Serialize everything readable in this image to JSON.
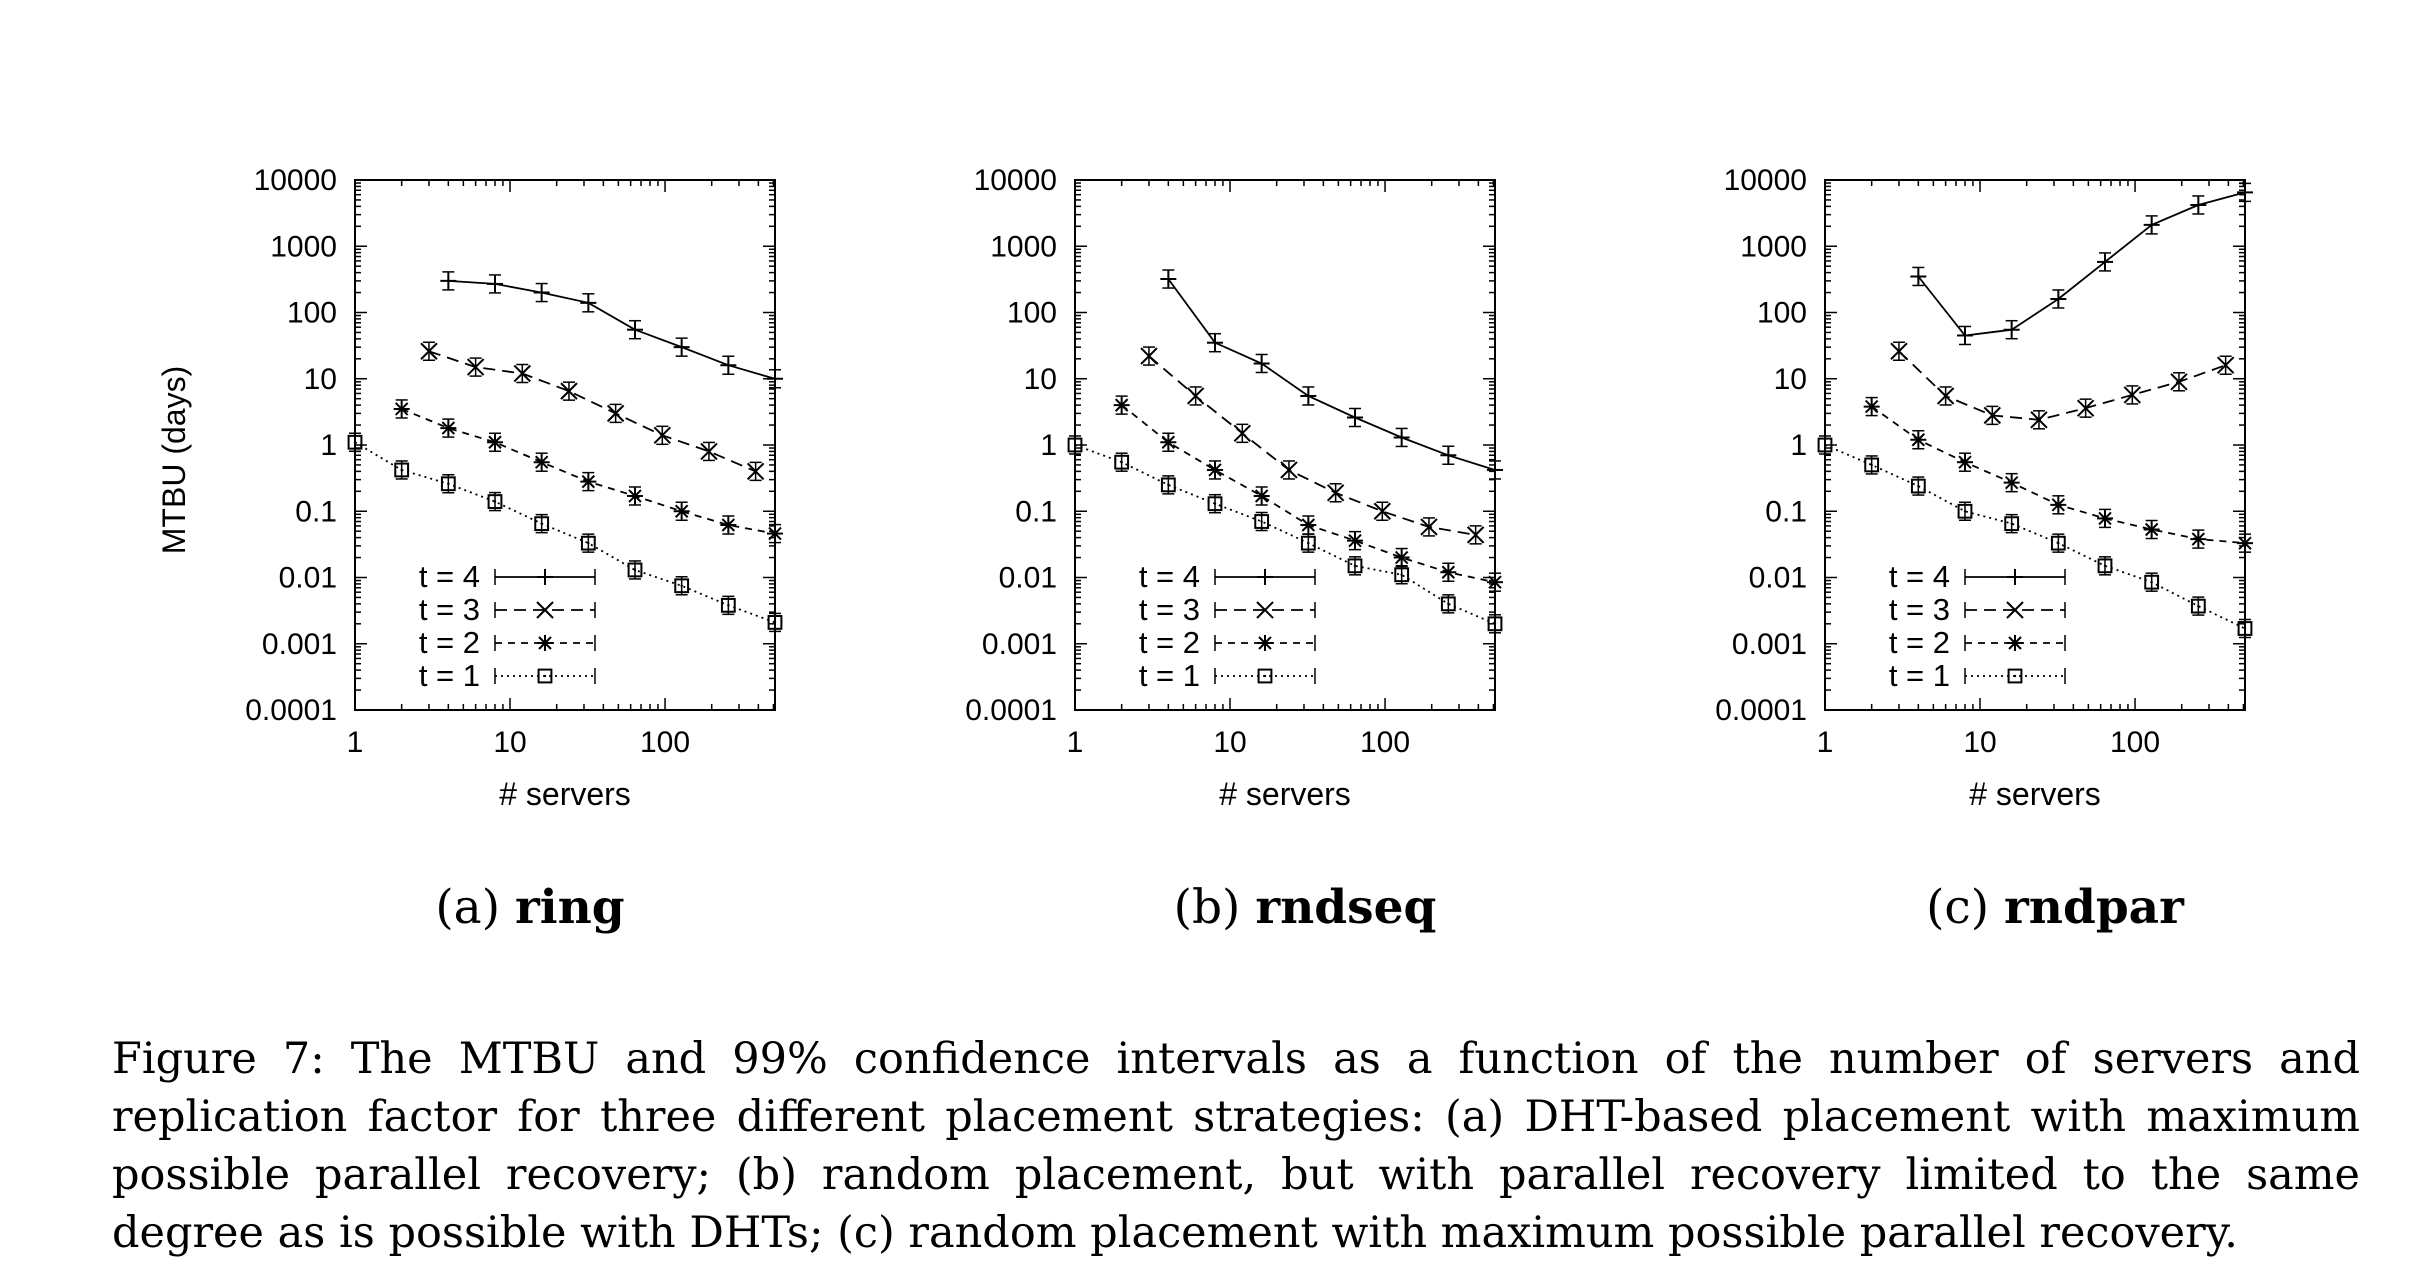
{
  "figure": {
    "caption": "Figure 7: The MTBU and 99% confidence intervals as a function of the number of servers and replication factor for three different placement strategies: (a) DHT-based placement with maximum possible parallel recovery; (b) random placement, but with parallel recovery limited to the same degree as is possible with DHTs; (c) random placement with maximum possible parallel recovery."
  },
  "subcaptions": [
    {
      "prefix": "(a) ",
      "name": "ring"
    },
    {
      "prefix": "(b) ",
      "name": "rndseq"
    },
    {
      "prefix": "(c) ",
      "name": "rndpar"
    }
  ],
  "chart_data": [
    {
      "type": "line",
      "title": "",
      "xlabel": "# servers",
      "ylabel": "MTBU (days)",
      "xscale": "log",
      "yscale": "log",
      "xlim": [
        1,
        512
      ],
      "ylim": [
        0.0001,
        10000
      ],
      "xticks": [
        "1",
        "10",
        "100"
      ],
      "yticks": [
        "0.0001",
        "0.001",
        "0.01",
        "0.1",
        "1",
        "10",
        "100",
        "1000",
        "10000"
      ],
      "legend_position": "bottom-left",
      "series": [
        {
          "name": "t = 4",
          "marker": "plus",
          "dash": "solid",
          "x": [
            4,
            8,
            16,
            32,
            64,
            128,
            256,
            512
          ],
          "y": [
            300,
            270,
            200,
            140,
            55,
            30,
            16,
            10
          ]
        },
        {
          "name": "t = 3",
          "marker": "x",
          "dash": "dashed",
          "x": [
            3,
            6,
            12,
            24,
            48,
            96,
            192,
            384
          ],
          "y": [
            26,
            15,
            12,
            6.5,
            3,
            1.4,
            0.8,
            0.4
          ]
        },
        {
          "name": "t = 2",
          "marker": "star",
          "dash": "shortdash",
          "x": [
            2,
            4,
            8,
            16,
            32,
            64,
            128,
            256,
            512
          ],
          "y": [
            3.5,
            1.8,
            1.1,
            0.55,
            0.28,
            0.17,
            0.1,
            0.062,
            0.046
          ]
        },
        {
          "name": "t = 1",
          "marker": "square",
          "dash": "dotted",
          "x": [
            1,
            2,
            4,
            8,
            16,
            32,
            64,
            128,
            256,
            512
          ],
          "y": [
            1.1,
            0.42,
            0.26,
            0.14,
            0.065,
            0.033,
            0.013,
            0.0075,
            0.0038,
            0.0021
          ]
        }
      ]
    },
    {
      "type": "line",
      "title": "",
      "xlabel": "# servers",
      "ylabel": "",
      "xscale": "log",
      "yscale": "log",
      "xlim": [
        1,
        512
      ],
      "ylim": [
        0.0001,
        10000
      ],
      "xticks": [
        "1",
        "10",
        "100"
      ],
      "yticks": [
        "0.0001",
        "0.001",
        "0.01",
        "0.1",
        "1",
        "10",
        "100",
        "1000",
        "10000"
      ],
      "legend_position": "bottom-left",
      "series": [
        {
          "name": "t = 4",
          "marker": "plus",
          "dash": "solid",
          "x": [
            4,
            8,
            16,
            32,
            64,
            128,
            256,
            512
          ],
          "y": [
            320,
            35,
            17,
            5.5,
            2.6,
            1.3,
            0.7,
            0.42
          ]
        },
        {
          "name": "t = 3",
          "marker": "x",
          "dash": "dashed",
          "x": [
            3,
            6,
            12,
            24,
            48,
            96,
            192,
            384
          ],
          "y": [
            22,
            5.5,
            1.5,
            0.42,
            0.19,
            0.1,
            0.058,
            0.044
          ]
        },
        {
          "name": "t = 2",
          "marker": "star",
          "dash": "shortdash",
          "x": [
            2,
            4,
            8,
            16,
            32,
            64,
            128,
            256,
            512
          ],
          "y": [
            4,
            1.1,
            0.42,
            0.17,
            0.062,
            0.036,
            0.02,
            0.012,
            0.0085
          ]
        },
        {
          "name": "t = 1",
          "marker": "square",
          "dash": "dotted",
          "x": [
            1,
            2,
            4,
            8,
            16,
            32,
            64,
            128,
            256,
            512
          ],
          "y": [
            1,
            0.55,
            0.25,
            0.13,
            0.07,
            0.033,
            0.015,
            0.011,
            0.004,
            0.002
          ]
        }
      ]
    },
    {
      "type": "line",
      "title": "",
      "xlabel": "# servers",
      "ylabel": "",
      "xscale": "log",
      "yscale": "log",
      "xlim": [
        1,
        512
      ],
      "ylim": [
        0.0001,
        10000
      ],
      "xticks": [
        "1",
        "10",
        "100"
      ],
      "yticks": [
        "0.0001",
        "0.001",
        "0.01",
        "0.1",
        "1",
        "10",
        "100",
        "1000",
        "10000"
      ],
      "legend_position": "bottom-left",
      "series": [
        {
          "name": "t = 4",
          "marker": "plus",
          "dash": "solid",
          "x": [
            4,
            8,
            16,
            32,
            64,
            128,
            256,
            512
          ],
          "y": [
            350,
            45,
            55,
            160,
            580,
            2100,
            4200,
            6500
          ]
        },
        {
          "name": "t = 3",
          "marker": "x",
          "dash": "dashed",
          "x": [
            3,
            6,
            12,
            24,
            48,
            96,
            192,
            384
          ],
          "y": [
            26,
            5.5,
            2.8,
            2.4,
            3.6,
            5.7,
            9,
            16
          ]
        },
        {
          "name": "t = 2",
          "marker": "star",
          "dash": "shortdash",
          "x": [
            2,
            4,
            8,
            16,
            32,
            64,
            128,
            256,
            512
          ],
          "y": [
            3.8,
            1.2,
            0.55,
            0.27,
            0.125,
            0.078,
            0.053,
            0.038,
            0.033
          ]
        },
        {
          "name": "t = 1",
          "marker": "square",
          "dash": "dotted",
          "x": [
            1,
            2,
            4,
            8,
            16,
            32,
            64,
            128,
            256,
            512
          ],
          "y": [
            1,
            0.5,
            0.24,
            0.1,
            0.065,
            0.033,
            0.015,
            0.0085,
            0.0037,
            0.0017
          ]
        }
      ]
    }
  ]
}
